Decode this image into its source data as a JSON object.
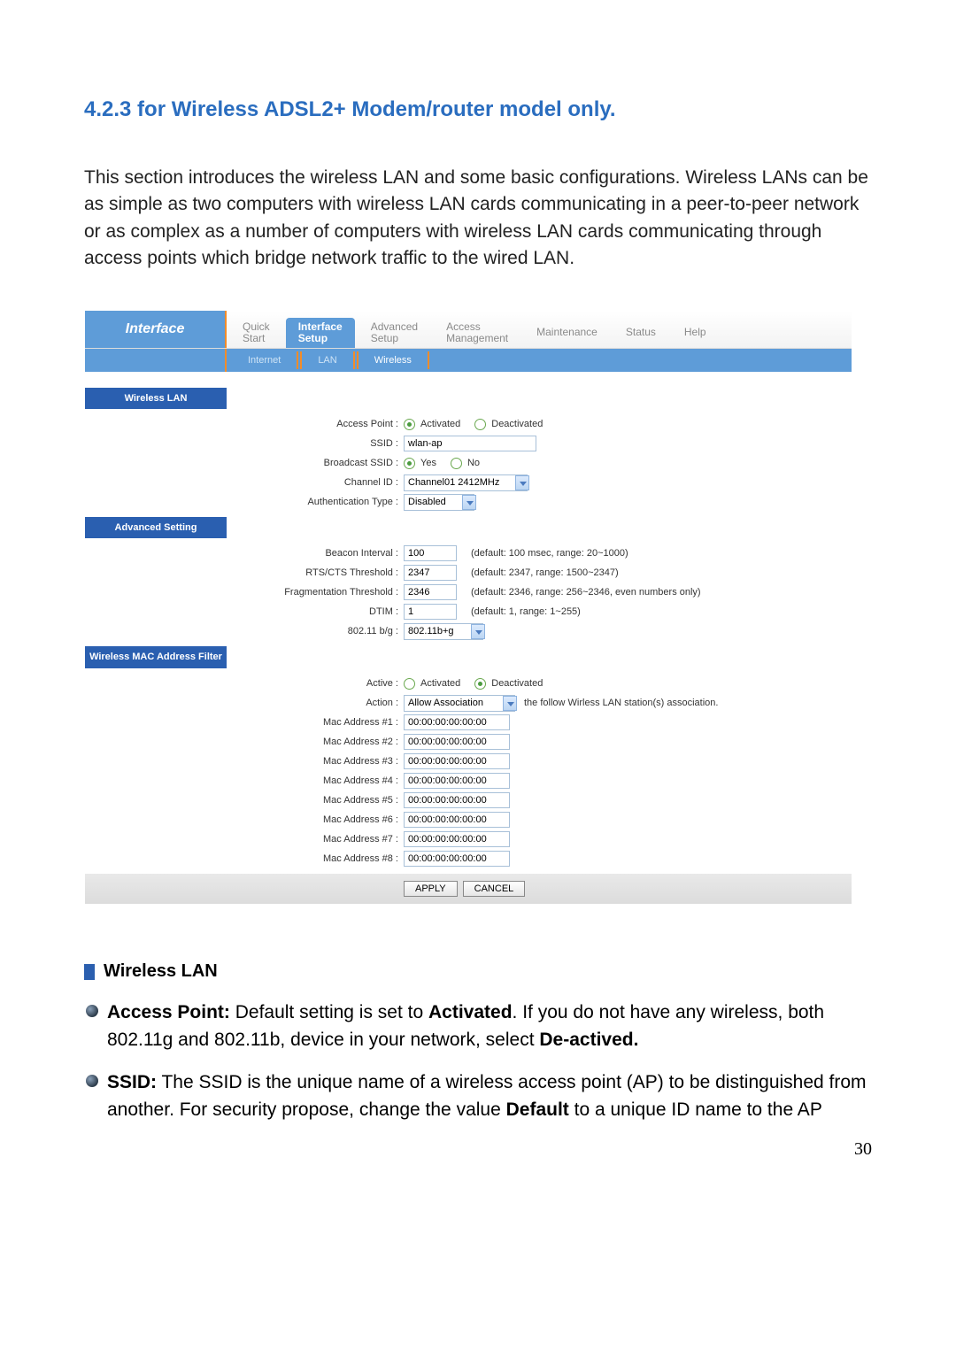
{
  "heading": "4.2.3 for Wireless ADSL2+ Modem/router model only.",
  "intro": "This section introduces the wireless LAN and some basic configurations. Wireless LANs can be as simple as two computers with wireless LAN cards communicating in a peer-to-peer network or as complex as a number of computers with wireless LAN cards communicating through access points which bridge network traffic to the wired LAN.",
  "panel": {
    "title": "Interface",
    "tabs": [
      "Quick\nStart",
      "Interface\nSetup",
      "Advanced\nSetup",
      "Access\nManagement",
      "Maintenance",
      "Status",
      "Help"
    ],
    "active_tab": 1,
    "subtabs": [
      "Internet",
      "LAN",
      "Wireless"
    ],
    "active_subtab": 2
  },
  "sections": {
    "wlan": {
      "title": "Wireless LAN",
      "access_point_label": "Access Point :",
      "access_point_opts": [
        "Activated",
        "Deactivated"
      ],
      "access_point_selected": 0,
      "ssid_label": "SSID :",
      "ssid_value": "wlan-ap",
      "broadcast_label": "Broadcast SSID :",
      "broadcast_opts": [
        "Yes",
        "No"
      ],
      "broadcast_selected": 0,
      "channel_label": "Channel ID :",
      "channel_value": "Channel01 2412MHz",
      "auth_label": "Authentication Type :",
      "auth_value": "Disabled"
    },
    "adv": {
      "title": "Advanced Setting",
      "beacon_label": "Beacon Interval :",
      "beacon_value": "100",
      "beacon_hint": "(default: 100 msec, range: 20~1000)",
      "rts_label": "RTS/CTS Threshold :",
      "rts_value": "2347",
      "rts_hint": "(default: 2347, range: 1500~2347)",
      "frag_label": "Fragmentation Threshold :",
      "frag_value": "2346",
      "frag_hint": "(default: 2346, range: 256~2346, even numbers only)",
      "dtim_label": "DTIM :",
      "dtim_value": "1",
      "dtim_hint": "(default: 1, range: 1~255)",
      "mode_label": "802.11 b/g :",
      "mode_value": "802.11b+g"
    },
    "mac": {
      "title": "Wireless MAC Address Filter",
      "active_label": "Active :",
      "active_opts": [
        "Activated",
        "Deactivated"
      ],
      "active_selected": 1,
      "action_label": "Action :",
      "action_value": "Allow Association",
      "action_tail": "the follow Wirless LAN station(s) association.",
      "mac_labels": [
        "Mac Address #1 :",
        "Mac Address #2 :",
        "Mac Address #3 :",
        "Mac Address #4 :",
        "Mac Address #5 :",
        "Mac Address #6 :",
        "Mac Address #7 :",
        "Mac Address #8 :"
      ],
      "mac_value": "00:00:00:00:00:00"
    },
    "buttons": {
      "apply": "APPLY",
      "cancel": "CANCEL"
    }
  },
  "desc": {
    "head": "Wireless LAN",
    "ap_label": "Access Point:",
    "ap_text_1": " Default setting is set to ",
    "ap_bold_1": "Activated",
    "ap_text_2": ".  If you do not have any wireless, both 802.11g and 802.11b, device in your network, select ",
    "ap_bold_2": "De-actived.",
    "ssid_label": "SSID:",
    "ssid_text_1": " The SSID is the unique name of a wireless access point (AP) to be distinguished from another.  For security propose, change the value",
    "ssid_bold": " Default",
    "ssid_text_2": " to a unique ID name to the AP"
  },
  "page_number": "30"
}
